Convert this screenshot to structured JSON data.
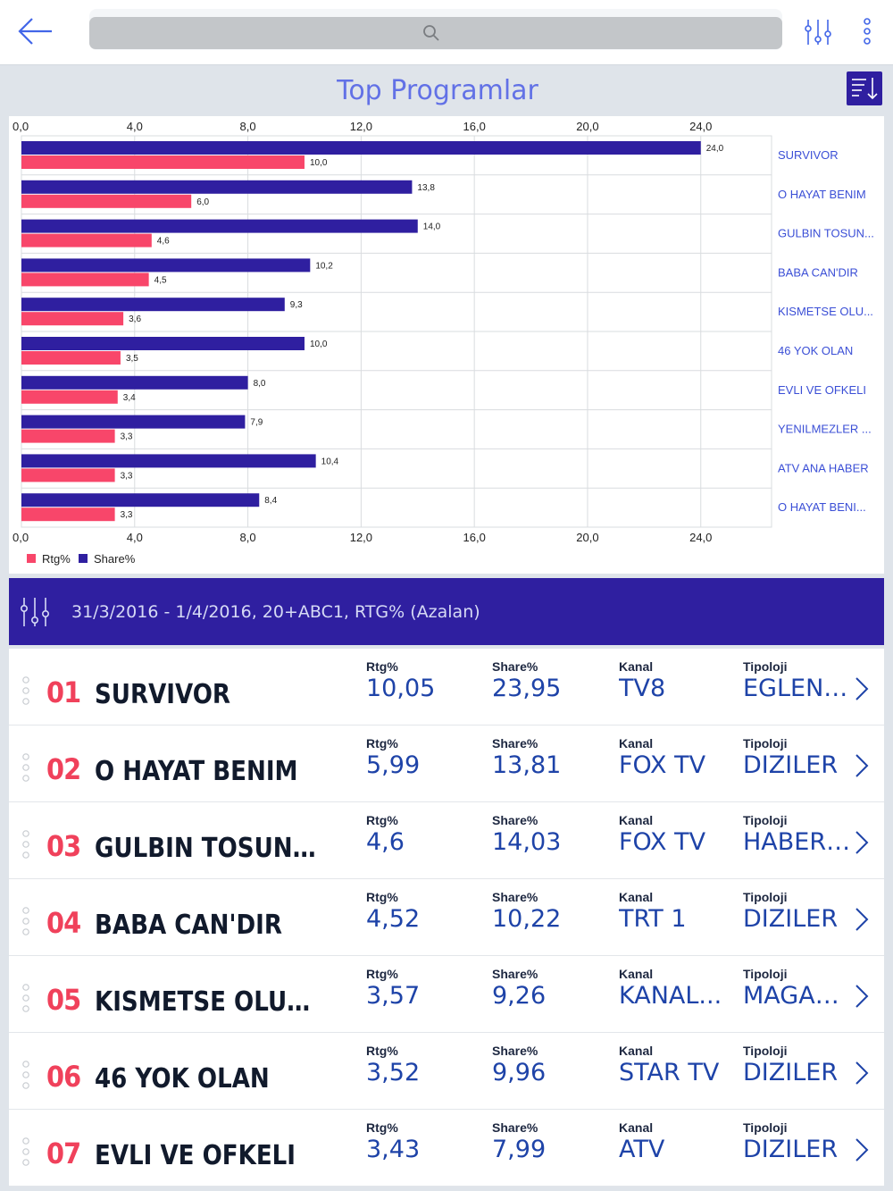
{
  "header": {
    "search_placeholder": "",
    "icons": {
      "back": "arrow-left-icon",
      "search": "search-icon",
      "filter": "sliders-icon",
      "more": "vertical-dots-icon"
    }
  },
  "section": {
    "title": "Top Programlar",
    "sort_icon": "sort-descending-icon"
  },
  "chart_data": {
    "type": "bar",
    "orientation": "horizontal",
    "categories": [
      "SURVIVOR",
      "O HAYAT BENIM",
      "GULBIN TOSUN...",
      "BABA CAN'DIR",
      "KISMETSE OLU...",
      "46 YOK OLAN",
      "EVLI VE OFKELI",
      "YENILMEZLER ...",
      "ATV ANA HABER",
      "O HAYAT BENI..."
    ],
    "series": [
      {
        "name": "Share%",
        "color": "#2f1fa0",
        "values": [
          24.0,
          13.8,
          14.0,
          10.2,
          9.3,
          10.0,
          8.0,
          7.9,
          10.4,
          8.4
        ],
        "labels": [
          "24,0",
          "13,8",
          "14,0",
          "10,2",
          "9,3",
          "10,0",
          "8,0",
          "7,9",
          "10,4",
          "8,4"
        ]
      },
      {
        "name": "Rtg%",
        "color": "#f8466a",
        "values": [
          10.0,
          6.0,
          4.6,
          4.5,
          3.6,
          3.5,
          3.4,
          3.3,
          3.3,
          3.3
        ],
        "labels": [
          "10,0",
          "6,0",
          "4,6",
          "4,5",
          "3,6",
          "3,5",
          "3,4",
          "3,3",
          "3,3",
          "3,3"
        ]
      }
    ],
    "xlim": [
      0,
      26.5
    ],
    "ticks": [
      0,
      4,
      8,
      12,
      16,
      20,
      24
    ],
    "tick_labels": [
      "0,0",
      "4,0",
      "8,0",
      "12,0",
      "16,0",
      "20,0",
      "24,0"
    ],
    "grid": true,
    "legend": [
      {
        "name": "Rtg%",
        "color": "#f8466a"
      },
      {
        "name": "Share%",
        "color": "#2f1fa0"
      }
    ],
    "legend_position": "bottom-left"
  },
  "filter_bar": {
    "text": "31/3/2016 - 1/4/2016, 20+ABC1, RTG% (Azalan)",
    "icon": "sliders-icon"
  },
  "columns": {
    "rtg": "Rtg%",
    "share": "Share%",
    "kanal": "Kanal",
    "tipoloji": "Tipoloji"
  },
  "rows": [
    {
      "rank": "01",
      "name": "SURVIVOR",
      "rtg": "10,05",
      "share": "23,95",
      "kanal": "TV8",
      "tipoloji": "EGLENCE"
    },
    {
      "rank": "02",
      "name": "O HAYAT BENIM",
      "rtg": "5,99",
      "share": "13,81",
      "kanal": "FOX TV",
      "tipoloji": "DIZILER"
    },
    {
      "rank": "03",
      "name": "GULBIN TOSUN IL...",
      "rtg": "4,6",
      "share": "14,03",
      "kanal": "FOX TV",
      "tipoloji": "HABER/..."
    },
    {
      "rank": "04",
      "name": "BABA CAN'DIR",
      "rtg": "4,52",
      "share": "10,22",
      "kanal": "TRT 1",
      "tipoloji": "DIZILER"
    },
    {
      "rank": "05",
      "name": "KISMETSE OLUR...",
      "rtg": "3,57",
      "share": "9,26",
      "kanal": "KANAL...",
      "tipoloji": "MAGAZI..."
    },
    {
      "rank": "06",
      "name": "46 YOK OLAN",
      "rtg": "3,52",
      "share": "9,96",
      "kanal": "STAR TV",
      "tipoloji": "DIZILER"
    },
    {
      "rank": "07",
      "name": "EVLI VE OFKELI",
      "rtg": "3,43",
      "share": "7,99",
      "kanal": "ATV",
      "tipoloji": "DIZILER"
    }
  ]
}
